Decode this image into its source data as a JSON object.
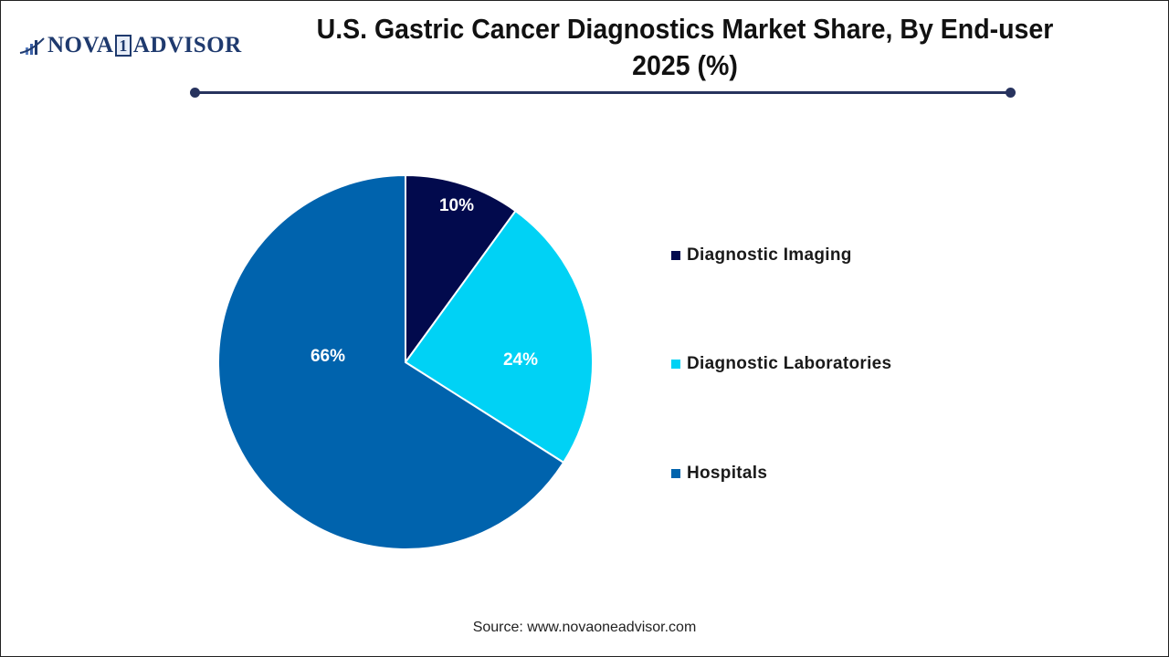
{
  "brand": {
    "logo_text_left": "NOVA",
    "logo_text_mid": "1",
    "logo_text_right": "ADVISOR"
  },
  "header": {
    "title_line1": "U.S. Gastric Cancer Diagnostics Market Share, By End-user",
    "title_line2": "2025 (%)"
  },
  "footer": {
    "source": "Source: www.novaoneadvisor.com"
  },
  "colors": {
    "diagnostic_imaging": "#020a4d",
    "diagnostic_laboratories": "#00d2f5",
    "hospitals": "#0063ad",
    "rule": "#27335e"
  },
  "legend": [
    {
      "label": "Diagnostic Imaging",
      "color": "#020a4d"
    },
    {
      "label": "Diagnostic Laboratories",
      "color": "#00d2f5"
    },
    {
      "label": "Hospitals",
      "color": "#0063ad"
    }
  ],
  "slice_labels": [
    "10%",
    "24%",
    "66%"
  ],
  "chart_data": {
    "type": "pie",
    "title": "U.S. Gastric Cancer Diagnostics Market Share, By End-user 2025 (%)",
    "categories": [
      "Diagnostic Imaging",
      "Diagnostic Laboratories",
      "Hospitals"
    ],
    "values": [
      10,
      24,
      66
    ],
    "unit": "%",
    "colors": [
      "#020a4d",
      "#00d2f5",
      "#0063ad"
    ],
    "start_angle": "12 o'clock",
    "direction": "clockwise",
    "legend_position": "right",
    "data_labels": [
      "10%",
      "24%",
      "66%"
    ]
  }
}
